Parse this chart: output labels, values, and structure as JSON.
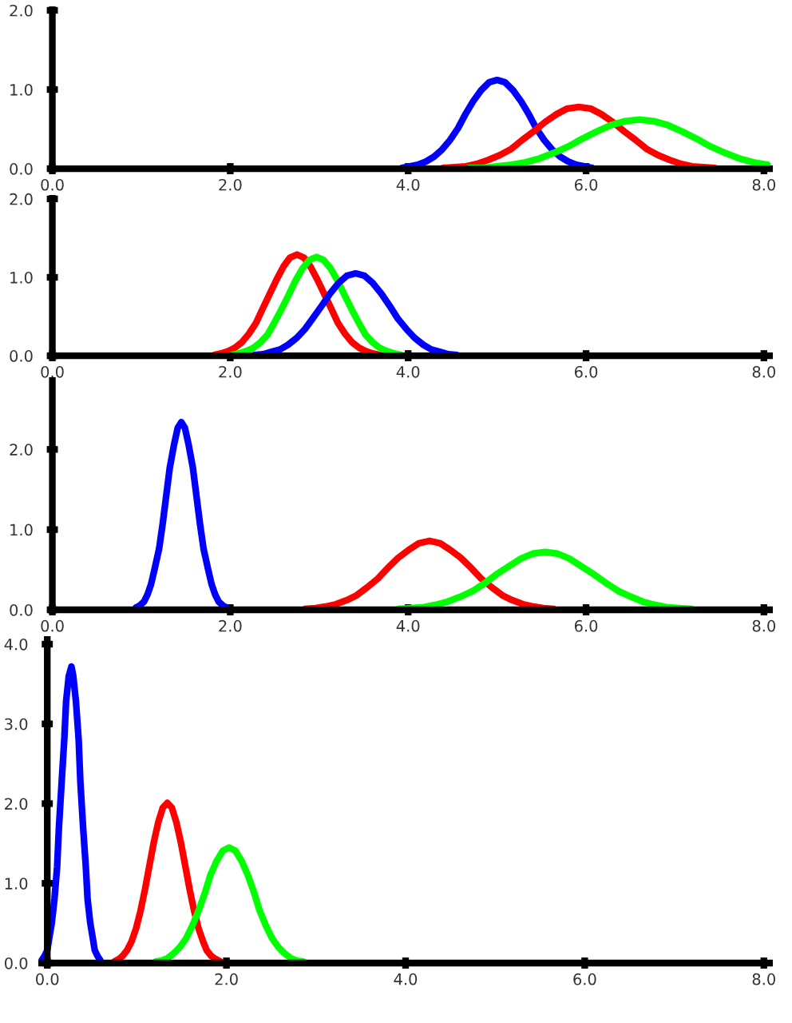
{
  "chart_data": [
    {
      "type": "line",
      "xlim": [
        -0.05,
        8.1
      ],
      "ylim": [
        -0.05,
        2.05
      ],
      "xticks": [
        {
          "value": 0,
          "label": "0.0"
        },
        {
          "value": 2,
          "label": "2.0"
        },
        {
          "value": 4,
          "label": "4.0"
        },
        {
          "value": 6,
          "label": "6.0"
        },
        {
          "value": 8,
          "label": "8.0"
        }
      ],
      "yticks": [
        {
          "value": 0,
          "label": "0.0"
        },
        {
          "value": 1,
          "label": "1.0"
        },
        {
          "value": 2,
          "label": "2.0"
        }
      ],
      "grid": false,
      "marker": "none",
      "line_style": "solid",
      "series": [
        {
          "color": "#0000ff",
          "x": [
            3.93,
            4.02,
            4.11,
            4.2,
            4.29,
            4.38,
            4.47,
            4.56,
            4.64,
            4.73,
            4.82,
            4.91,
            5.0,
            5.09,
            5.18,
            5.27,
            5.36,
            5.44,
            5.53,
            5.62,
            5.71,
            5.8,
            5.89,
            5.98,
            6.07
          ],
          "values": [
            0.01,
            0.03,
            0.05,
            0.09,
            0.15,
            0.24,
            0.36,
            0.51,
            0.68,
            0.85,
            0.99,
            1.09,
            1.12,
            1.09,
            0.99,
            0.85,
            0.68,
            0.51,
            0.36,
            0.24,
            0.15,
            0.09,
            0.05,
            0.03,
            0.01
          ]
        },
        {
          "color": "#ff0000",
          "x": [
            4.39,
            4.52,
            4.65,
            4.77,
            4.9,
            5.03,
            5.16,
            5.28,
            5.41,
            5.54,
            5.67,
            5.79,
            5.92,
            6.05,
            6.17,
            6.3,
            6.43,
            6.56,
            6.68,
            6.81,
            6.94,
            7.07,
            7.19,
            7.32,
            7.45
          ],
          "values": [
            0.01,
            0.02,
            0.03,
            0.06,
            0.11,
            0.17,
            0.25,
            0.36,
            0.47,
            0.59,
            0.69,
            0.76,
            0.78,
            0.76,
            0.69,
            0.59,
            0.47,
            0.36,
            0.25,
            0.17,
            0.11,
            0.06,
            0.03,
            0.02,
            0.01
          ]
        },
        {
          "color": "#00ff00",
          "x": [
            4.68,
            4.84,
            5.0,
            5.16,
            5.32,
            5.48,
            5.64,
            5.8,
            5.96,
            6.12,
            6.28,
            6.44,
            6.6,
            6.76,
            6.92,
            7.08,
            7.24,
            7.4,
            7.56,
            7.72,
            7.88,
            8.04
          ],
          "values": [
            0.01,
            0.01,
            0.03,
            0.05,
            0.08,
            0.13,
            0.2,
            0.28,
            0.38,
            0.47,
            0.55,
            0.6,
            0.62,
            0.6,
            0.55,
            0.47,
            0.38,
            0.28,
            0.2,
            0.13,
            0.08,
            0.05
          ]
        }
      ]
    },
    {
      "type": "line",
      "xlim": [
        -0.05,
        8.1
      ],
      "ylim": [
        -0.05,
        2.05
      ],
      "xticks": [
        {
          "value": 0,
          "label": "0.0"
        },
        {
          "value": 2,
          "label": "2.0"
        },
        {
          "value": 4,
          "label": "4.0"
        },
        {
          "value": 6,
          "label": "6.0"
        },
        {
          "value": 8,
          "label": "8.0"
        }
      ],
      "yticks": [
        {
          "value": 0,
          "label": "0.0"
        },
        {
          "value": 1,
          "label": "1.0"
        },
        {
          "value": 2,
          "label": "2.0"
        }
      ],
      "grid": false,
      "marker": "none",
      "line_style": "solid",
      "series": [
        {
          "color": "#ff0000",
          "x": [
            1.82,
            1.9,
            1.98,
            2.05,
            2.13,
            2.21,
            2.29,
            2.36,
            2.44,
            2.52,
            2.6,
            2.67,
            2.75,
            2.83,
            2.9,
            2.98,
            3.06,
            3.14,
            3.21,
            3.29,
            3.37,
            3.45,
            3.52,
            3.6,
            3.68
          ],
          "values": [
            0.01,
            0.03,
            0.06,
            0.1,
            0.17,
            0.28,
            0.42,
            0.59,
            0.78,
            0.97,
            1.14,
            1.25,
            1.29,
            1.25,
            1.14,
            0.97,
            0.78,
            0.59,
            0.42,
            0.28,
            0.17,
            0.1,
            0.06,
            0.03,
            0.01
          ]
        },
        {
          "color": "#00ff00",
          "x": [
            2.02,
            2.1,
            2.18,
            2.26,
            2.34,
            2.42,
            2.49,
            2.57,
            2.65,
            2.73,
            2.81,
            2.89,
            2.97,
            3.05,
            3.13,
            3.21,
            3.29,
            3.37,
            3.45,
            3.52,
            3.6,
            3.68,
            3.76,
            3.84,
            3.92
          ],
          "values": [
            0.01,
            0.03,
            0.06,
            0.1,
            0.17,
            0.27,
            0.41,
            0.58,
            0.76,
            0.95,
            1.11,
            1.22,
            1.26,
            1.22,
            1.11,
            0.95,
            0.76,
            0.58,
            0.41,
            0.27,
            0.17,
            0.1,
            0.06,
            0.03,
            0.01
          ]
        },
        {
          "color": "#0000ff",
          "x": [
            2.27,
            2.37,
            2.46,
            2.56,
            2.65,
            2.75,
            2.84,
            2.93,
            3.03,
            3.12,
            3.22,
            3.31,
            3.41,
            3.51,
            3.6,
            3.7,
            3.79,
            3.88,
            3.98,
            4.07,
            4.17,
            4.26,
            4.36,
            4.45,
            4.55
          ],
          "values": [
            0.01,
            0.02,
            0.05,
            0.08,
            0.14,
            0.23,
            0.34,
            0.48,
            0.64,
            0.79,
            0.93,
            1.02,
            1.05,
            1.02,
            0.93,
            0.79,
            0.64,
            0.48,
            0.34,
            0.23,
            0.14,
            0.08,
            0.05,
            0.02,
            0.01
          ]
        }
      ]
    },
    {
      "type": "line",
      "xlim": [
        -0.05,
        8.1
      ],
      "ylim": [
        -0.05,
        2.9
      ],
      "xticks": [
        {
          "value": 0,
          "label": "0.0"
        },
        {
          "value": 2,
          "label": "2.0"
        },
        {
          "value": 4,
          "label": "4.0"
        },
        {
          "value": 6,
          "label": "6.0"
        },
        {
          "value": 8,
          "label": "8.0"
        }
      ],
      "yticks": [
        {
          "value": 0,
          "label": "0.0"
        },
        {
          "value": 1,
          "label": "1.0"
        },
        {
          "value": 2,
          "label": "2.0"
        }
      ],
      "grid": false,
      "marker": "none",
      "line_style": "solid",
      "series": [
        {
          "color": "#0000ff",
          "x": [
            0.94,
            0.98,
            1.03,
            1.07,
            1.11,
            1.15,
            1.2,
            1.24,
            1.28,
            1.32,
            1.37,
            1.41,
            1.45,
            1.49,
            1.53,
            1.58,
            1.62,
            1.66,
            1.7,
            1.75,
            1.79,
            1.83,
            1.87,
            1.92,
            1.96
          ],
          "values": [
            0.03,
            0.05,
            0.1,
            0.19,
            0.32,
            0.51,
            0.76,
            1.07,
            1.42,
            1.77,
            2.07,
            2.27,
            2.34,
            2.27,
            2.07,
            1.77,
            1.42,
            1.07,
            0.76,
            0.51,
            0.32,
            0.19,
            0.1,
            0.05,
            0.03
          ]
        },
        {
          "color": "#ff0000",
          "x": [
            2.84,
            2.96,
            3.07,
            3.19,
            3.31,
            3.42,
            3.54,
            3.66,
            3.77,
            3.89,
            4.01,
            4.12,
            4.24,
            4.36,
            4.47,
            4.59,
            4.71,
            4.82,
            4.94,
            5.06,
            5.17,
            5.29,
            5.41,
            5.52,
            5.64
          ],
          "values": [
            0.01,
            0.02,
            0.04,
            0.07,
            0.12,
            0.18,
            0.28,
            0.39,
            0.52,
            0.65,
            0.75,
            0.83,
            0.86,
            0.83,
            0.75,
            0.65,
            0.52,
            0.39,
            0.28,
            0.18,
            0.12,
            0.07,
            0.04,
            0.02,
            0.01
          ]
        },
        {
          "color": "#00ff00",
          "x": [
            3.89,
            4.03,
            4.16,
            4.3,
            4.44,
            4.58,
            4.72,
            4.86,
            4.99,
            5.13,
            5.27,
            5.4,
            5.54,
            5.68,
            5.81,
            5.95,
            6.09,
            6.23,
            6.37,
            6.51,
            6.64,
            6.78,
            6.92,
            7.05,
            7.19
          ],
          "values": [
            0.01,
            0.02,
            0.03,
            0.06,
            0.1,
            0.16,
            0.23,
            0.33,
            0.44,
            0.54,
            0.64,
            0.7,
            0.72,
            0.7,
            0.64,
            0.54,
            0.44,
            0.33,
            0.23,
            0.16,
            0.1,
            0.06,
            0.03,
            0.02,
            0.01
          ]
        }
      ]
    },
    {
      "type": "line",
      "xlim": [
        -0.1,
        8.1
      ],
      "ylim": [
        -0.05,
        4.1
      ],
      "xticks": [
        {
          "value": 0,
          "label": "0.0"
        },
        {
          "value": 2,
          "label": "2.0"
        },
        {
          "value": 4,
          "label": "4.0"
        },
        {
          "value": 6,
          "label": "6.0"
        },
        {
          "value": 8,
          "label": "8.0"
        }
      ],
      "yticks": [
        {
          "value": 0,
          "label": "0.0"
        },
        {
          "value": 1,
          "label": "1.0"
        },
        {
          "value": 2,
          "label": "2.0"
        },
        {
          "value": 3,
          "label": "3.0"
        },
        {
          "value": 4,
          "label": "4.0"
        }
      ],
      "grid": false,
      "marker": "none",
      "line_style": "solid",
      "series": [
        {
          "color": "#0000ff",
          "x": [
            -0.06,
            -0.03,
            0.0,
            0.02,
            0.05,
            0.08,
            0.11,
            0.13,
            0.16,
            0.19,
            0.21,
            0.24,
            0.27,
            0.29,
            0.32,
            0.35,
            0.37,
            0.4,
            0.43,
            0.45,
            0.48,
            0.51,
            0.53,
            0.56,
            0.59
          ],
          "values": [
            0.04,
            0.09,
            0.16,
            0.3,
            0.5,
            0.8,
            1.21,
            1.7,
            2.26,
            2.81,
            3.28,
            3.6,
            3.72,
            3.6,
            3.28,
            2.81,
            2.26,
            1.7,
            1.21,
            0.8,
            0.5,
            0.3,
            0.16,
            0.09,
            0.04
          ]
        },
        {
          "color": "#ff0000",
          "x": [
            0.75,
            0.8,
            0.84,
            0.89,
            0.94,
            0.99,
            1.04,
            1.09,
            1.14,
            1.19,
            1.24,
            1.29,
            1.34,
            1.39,
            1.44,
            1.49,
            1.54,
            1.59,
            1.64,
            1.69,
            1.74,
            1.78,
            1.83,
            1.88,
            1.93
          ],
          "values": [
            0.02,
            0.05,
            0.09,
            0.16,
            0.27,
            0.43,
            0.65,
            0.92,
            1.22,
            1.52,
            1.77,
            1.95,
            2.01,
            1.95,
            1.77,
            1.52,
            1.22,
            0.92,
            0.65,
            0.43,
            0.27,
            0.16,
            0.09,
            0.05,
            0.02
          ]
        },
        {
          "color": "#00ff00",
          "x": [
            1.21,
            1.27,
            1.34,
            1.41,
            1.48,
            1.55,
            1.62,
            1.69,
            1.76,
            1.82,
            1.89,
            1.96,
            2.03,
            2.1,
            2.17,
            2.24,
            2.31,
            2.37,
            2.44,
            2.51,
            2.58,
            2.65,
            2.72,
            2.79,
            2.86
          ],
          "values": [
            0.02,
            0.03,
            0.06,
            0.12,
            0.2,
            0.31,
            0.47,
            0.66,
            0.88,
            1.1,
            1.28,
            1.41,
            1.45,
            1.41,
            1.28,
            1.1,
            0.88,
            0.66,
            0.47,
            0.31,
            0.2,
            0.12,
            0.06,
            0.03,
            0.02
          ]
        }
      ]
    }
  ]
}
